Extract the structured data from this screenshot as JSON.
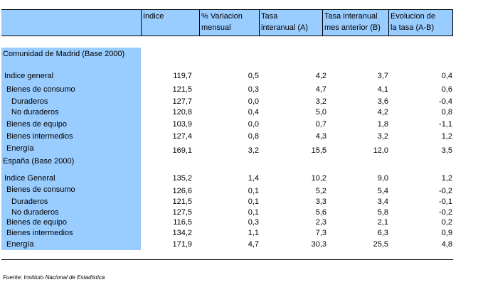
{
  "header": {
    "indice": "Indice",
    "variacion": "% Variacion\nmensual",
    "tasa_a": "Tasa\ninteranual (A)",
    "tasa_b": "Tasa interanual\nmes anterior (B)",
    "evolucion": "Evolucion de\nla tasa (A-B)"
  },
  "sections": [
    {
      "title": "Comunidad de Madrid (Base 2000)",
      "rows": [
        {
          "label": "Indice general",
          "values": [
            "119,7",
            "0,5",
            "4,2",
            "3,7",
            "0,4"
          ]
        },
        {
          "label": "Bienes de consumo",
          "values": [
            "121,5",
            "0,3",
            "4,7",
            "4,1",
            "0,6"
          ]
        },
        {
          "label": "Duraderos",
          "values": [
            "127,7",
            "0,0",
            "3,2",
            "3,6",
            "-0,4"
          ]
        },
        {
          "label": "No duraderos",
          "values": [
            "120,8",
            "0,4",
            "5,0",
            "4,2",
            "0,8"
          ]
        },
        {
          "label": "Bienes de equipo",
          "values": [
            "103,9",
            "0,0",
            "0,7",
            "1,8",
            "-1,1"
          ]
        },
        {
          "label": "Bienes intermedios",
          "values": [
            "127,4",
            "0,8",
            "4,3",
            "3,2",
            "1,2"
          ]
        },
        {
          "label": "Energía",
          "values": [
            "169,1",
            "3,2",
            "15,5",
            "12,0",
            "3,5"
          ]
        }
      ]
    },
    {
      "title": "España (Base 2000)",
      "rows": [
        {
          "label": "Indice General",
          "values": [
            "135,2",
            "1,4",
            "10,2",
            "9,0",
            "1,2"
          ]
        },
        {
          "label": "Bienes de consumo",
          "values": [
            "126,6",
            "0,1",
            "5,2",
            "5,4",
            "-0,2"
          ]
        },
        {
          "label": "Duraderos",
          "values": [
            "121,5",
            "0,1",
            "3,3",
            "3,4",
            "-0,1"
          ]
        },
        {
          "label": "No duraderos",
          "values": [
            "127,5",
            "0,1",
            "5,6",
            "5,8",
            "-0,2"
          ]
        },
        {
          "label": "Bienes de equipo",
          "values": [
            "116,5",
            "0,3",
            "2,3",
            "2,1",
            "0,2"
          ]
        },
        {
          "label": "Bienes intermedios",
          "values": [
            "134,2",
            "1,1",
            "7,3",
            "6,3",
            "0,9"
          ]
        },
        {
          "label": "Energía",
          "values": [
            "171,9",
            "4,7",
            "30,3",
            "25,5",
            "4,8"
          ]
        }
      ]
    }
  ],
  "source": "Fuente: Instituto Nacional de Estadística"
}
